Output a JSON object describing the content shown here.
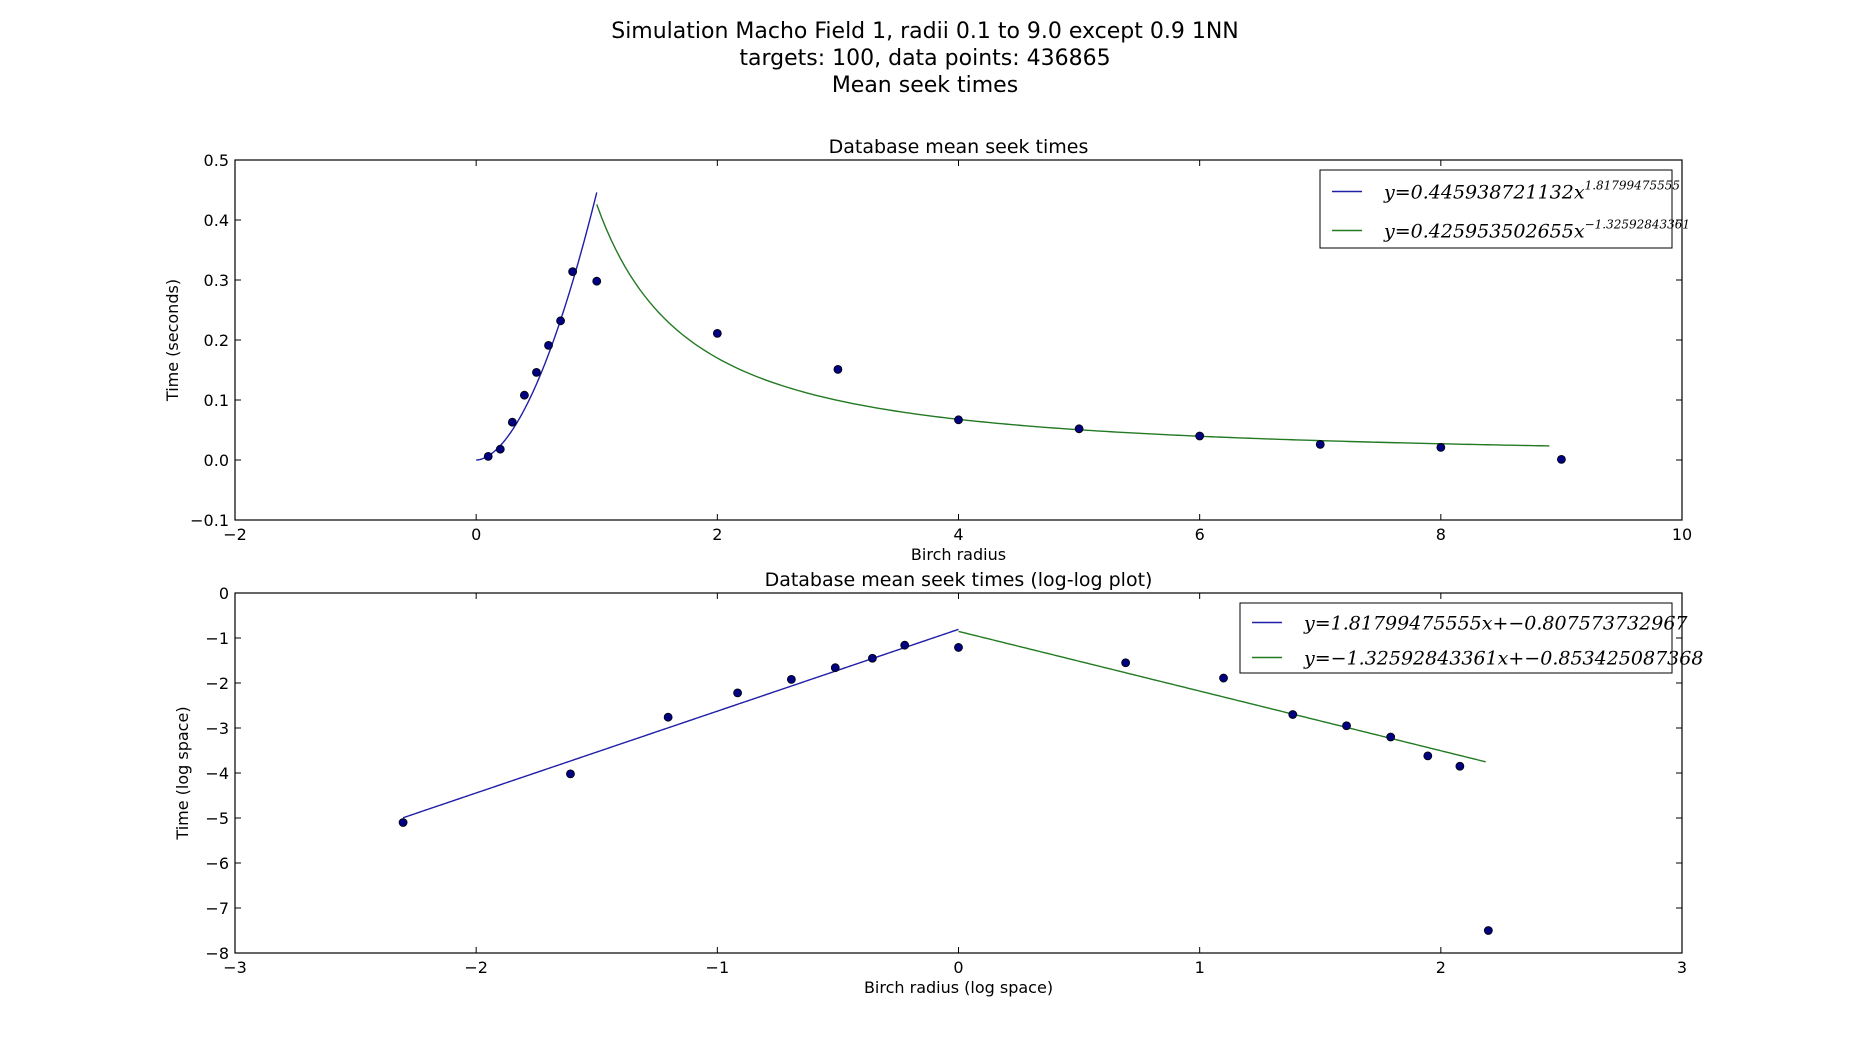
{
  "figure": {
    "title_lines": [
      "Simulation Macho Field 1, radii 0.1 to 9.0 except 0.9 1NN",
      "targets: 100,   data points: 436865",
      "Mean seek times"
    ]
  },
  "colors": {
    "fit_low": "#1f1fa8",
    "fit_high": "#237a23",
    "points": "#000080"
  },
  "chart_data": [
    {
      "type": "scatter",
      "title": "Database mean seek times",
      "xlabel": "Birch radius",
      "ylabel": "Time (seconds)",
      "xlim": [
        -2,
        10
      ],
      "ylim": [
        -0.1,
        0.5
      ],
      "xticks": [
        -2,
        0,
        2,
        4,
        6,
        8,
        10
      ],
      "yticks": [
        -0.1,
        0.0,
        0.1,
        0.2,
        0.3,
        0.4,
        0.5
      ],
      "xtick_labels": [
        "−2",
        "0",
        "2",
        "4",
        "6",
        "8",
        "10"
      ],
      "ytick_labels": [
        "−0.1",
        "0.0",
        "0.1",
        "0.2",
        "0.3",
        "0.4",
        "0.5"
      ],
      "legend_position": "top-right",
      "points": {
        "x": [
          0.1,
          0.2,
          0.3,
          0.4,
          0.5,
          0.6,
          0.7,
          0.8,
          1.0,
          2.0,
          3.0,
          4.0,
          5.0,
          6.0,
          7.0,
          8.0,
          9.0
        ],
        "y": [
          0.006,
          0.018,
          0.063,
          0.108,
          0.146,
          0.191,
          0.232,
          0.314,
          0.298,
          0.211,
          0.151,
          0.067,
          0.052,
          0.04,
          0.026,
          0.021,
          0.001
        ]
      },
      "fits": [
        {
          "kind": "power",
          "coef": 0.445938721132,
          "exponent": 1.81799475555,
          "x_range": [
            0.0,
            1.0
          ],
          "legend_main": "y=0.445938721132x",
          "legend_sup": "1.81799475555",
          "color": "#1f1fa8"
        },
        {
          "kind": "power",
          "coef": 0.425953502655,
          "exponent": -1.32592843361,
          "x_range": [
            1.0,
            8.9
          ],
          "legend_main": "y=0.425953502655x",
          "legend_sup": "−1.32592843361",
          "color": "#237a23"
        }
      ]
    },
    {
      "type": "scatter",
      "title": "Database mean seek times (log-log plot)",
      "xlabel": "Birch radius (log space)",
      "ylabel": "Time (log space)",
      "xlim": [
        -3,
        3
      ],
      "ylim": [
        -8,
        0
      ],
      "xticks": [
        -3,
        -2,
        -1,
        0,
        1,
        2,
        3
      ],
      "yticks": [
        -8,
        -7,
        -6,
        -5,
        -4,
        -3,
        -2,
        -1,
        0
      ],
      "xtick_labels": [
        "−3",
        "−2",
        "−1",
        "0",
        "1",
        "2",
        "3"
      ],
      "ytick_labels": [
        "−8",
        "−7",
        "−6",
        "−5",
        "−4",
        "−3",
        "−2",
        "−1",
        "0"
      ],
      "legend_position": "top-right",
      "points": {
        "x": [
          -2.303,
          -1.609,
          -1.204,
          -0.916,
          -0.693,
          -0.511,
          -0.357,
          -0.223,
          0.0,
          0.693,
          1.099,
          1.386,
          1.609,
          1.792,
          1.946,
          2.079,
          2.197
        ],
        "y": [
          -5.1,
          -4.02,
          -2.76,
          -2.22,
          -1.92,
          -1.66,
          -1.45,
          -1.16,
          -1.21,
          -1.55,
          -1.89,
          -2.7,
          -2.95,
          -3.2,
          -3.62,
          -3.85,
          -7.5
        ]
      },
      "fits": [
        {
          "kind": "linear",
          "slope": 1.81799475555,
          "intercept": -0.807573732967,
          "x_range": [
            -2.303,
            0.0
          ],
          "legend_main": "y=1.81799475555x+−0.807573732967",
          "legend_sup": "",
          "color": "#1f1fa8"
        },
        {
          "kind": "linear",
          "slope": -1.32592843361,
          "intercept": -0.853425087368,
          "x_range": [
            0.0,
            2.186
          ],
          "legend_main": "y=−1.32592843361x+−0.853425087368",
          "legend_sup": "",
          "color": "#237a23"
        }
      ]
    }
  ]
}
